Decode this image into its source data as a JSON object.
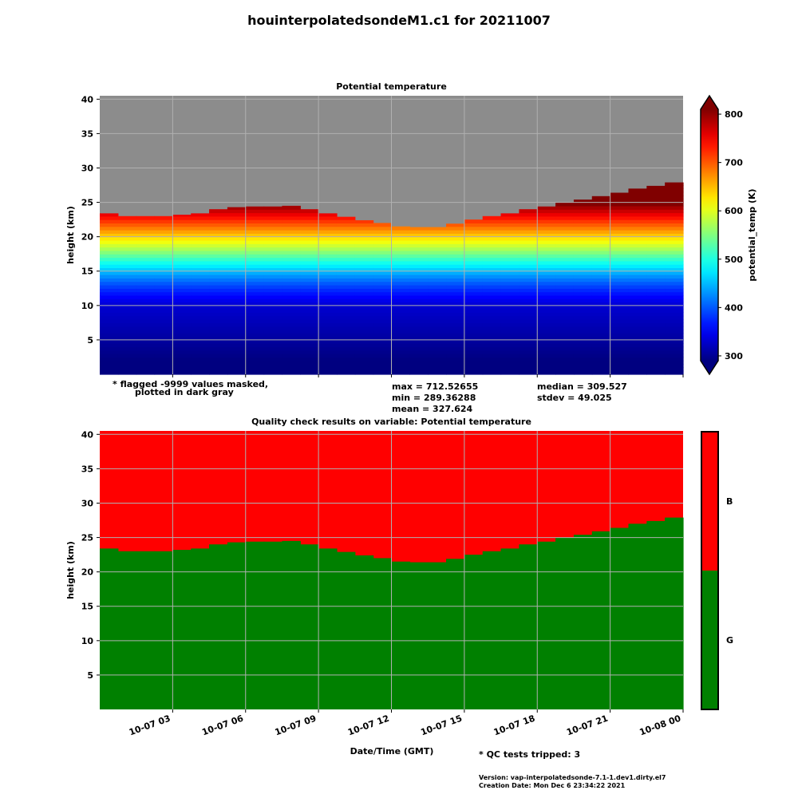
{
  "main_title": "houinterpolatedsondeM1.c1 for 20211007",
  "chart_data": [
    {
      "type": "heatmap",
      "title": "Potential temperature",
      "ylabel": "height (km)",
      "xlabel": "",
      "ylim": [
        0,
        40.5
      ],
      "yticks": [
        5,
        10,
        15,
        20,
        25,
        30,
        35,
        40
      ],
      "xlim_hours": [
        0,
        24
      ],
      "xticks_hours": [
        3,
        6,
        9,
        12,
        15,
        18,
        21,
        24
      ],
      "colorbar": {
        "label": "potential_temp (K)",
        "min": 300,
        "max": 800,
        "ticks": [
          300,
          400,
          500,
          600,
          700,
          800
        ],
        "extend": "both"
      },
      "mask_color": "#8c8c8c",
      "grid": true,
      "data_top_km_by_hour": [
        23.4,
        23.0,
        23.0,
        23.0,
        23.2,
        23.4,
        24.0,
        24.3,
        24.4,
        24.4,
        24.5,
        24.0,
        23.4,
        22.9,
        22.4,
        22.0,
        21.5,
        21.4,
        21.4,
        21.9,
        22.5,
        23.0,
        23.4,
        24.0,
        24.4,
        25.0,
        25.4,
        25.9,
        26.4,
        27.0,
        27.4,
        27.9
      ],
      "stats": {
        "max": "max = 712.52655",
        "min": "min = 289.36288",
        "mean": "mean = 327.624",
        "median": "median = 309.527",
        "stdev": "stdev = 49.025"
      },
      "mask_note_1": "* flagged -9999 values masked,",
      "mask_note_2": "plotted in dark gray"
    },
    {
      "type": "heatmap",
      "title": "Quality check results on variable: Potential temperature",
      "ylabel": "height (km)",
      "xlabel": "Date/Time (GMT)",
      "ylim": [
        0,
        40.5
      ],
      "yticks": [
        5,
        10,
        15,
        20,
        25,
        30,
        35,
        40
      ],
      "xticklabels": [
        "10-07 03",
        "10-07 06",
        "10-07 09",
        "10-07 12",
        "10-07 15",
        "10-07 18",
        "10-07 21",
        "10-08 00"
      ],
      "categories": [
        "G",
        "B"
      ],
      "category_colors": {
        "G": "#008000",
        "B": "#ff0000"
      },
      "grid": true,
      "qc_note": "* QC tests tripped: 3"
    }
  ],
  "footer": {
    "version": "Version: vap-interpolatedsonde-7.1-1.dev1.dirty.el7",
    "creation": "Creation Date: Mon Dec  6 23:34:22 2021"
  }
}
